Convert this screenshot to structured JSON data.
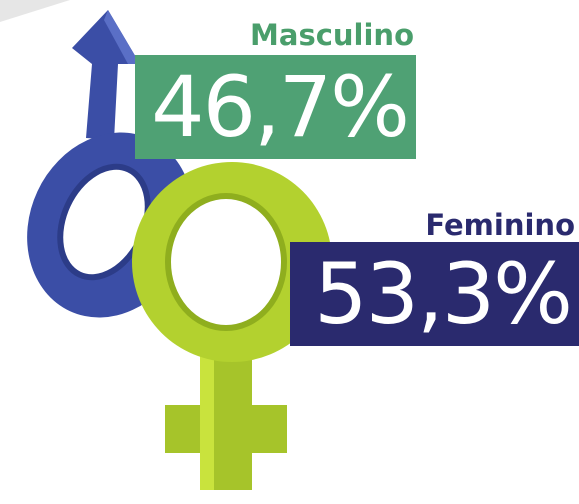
{
  "items": [
    {
      "label": "Masculino",
      "value": "46,7%"
    },
    {
      "label": "Feminino",
      "value": "53,3%"
    }
  ]
}
